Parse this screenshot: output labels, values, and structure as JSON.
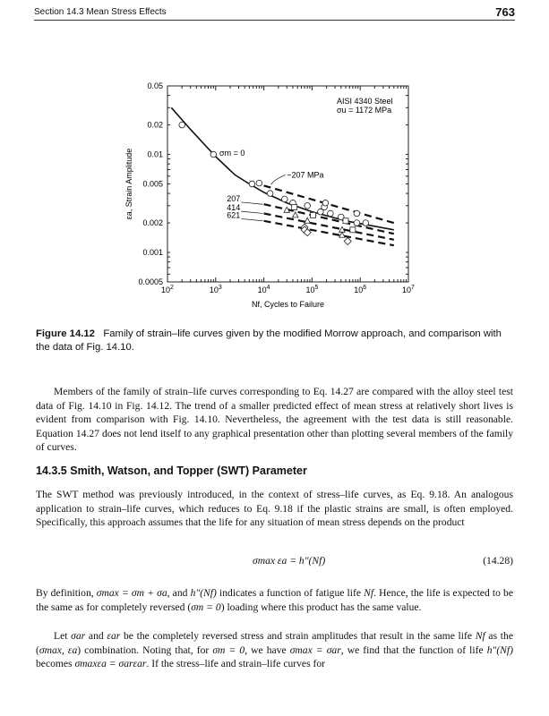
{
  "header": {
    "section": "Section 14.3   Mean Stress Effects",
    "page_number": "763"
  },
  "chart_data": {
    "type": "scatter",
    "xscale": "log",
    "yscale": "log",
    "xlim": [
      100,
      10000000
    ],
    "ylim": [
      0.0005,
      0.05
    ],
    "xlabel": "N_f, Cycles to Failure",
    "ylabel": "ε_a, Strain Amplitude",
    "x_ticks": [
      "10^2",
      "10^3",
      "10^4",
      "10^5",
      "10^6",
      "10^7"
    ],
    "x_tick_values": [
      100,
      1000,
      10000,
      100000,
      1000000,
      10000000
    ],
    "y_ticks": [
      "0.05",
      "0.02",
      "0.01",
      "0.005",
      "0.002",
      "0.001",
      "0.0005"
    ],
    "y_tick_values": [
      0.05,
      0.02,
      0.01,
      0.005,
      0.002,
      0.001,
      0.0005
    ],
    "annotation_material": "AISI 4340 Steel",
    "annotation_strength": "σu = 1172 MPa",
    "curves": [
      {
        "label": "σm = 0",
        "style": "solid",
        "x": [
          120,
          300,
          1000,
          2500,
          5000,
          10000,
          30000,
          100000,
          500000,
          5000000
        ],
        "y": [
          0.03,
          0.018,
          0.0095,
          0.0062,
          0.005,
          0.0041,
          0.0032,
          0.0026,
          0.0021,
          0.0017
        ]
      },
      {
        "label": "−207 MPa",
        "style": "dashed",
        "x": [
          10000,
          5000000
        ],
        "y": [
          0.0048,
          0.002
        ]
      },
      {
        "label": "207",
        "style": "dashed",
        "x": [
          10000,
          5000000
        ],
        "y": [
          0.0031,
          0.00155
        ]
      },
      {
        "label": "414",
        "style": "dashed",
        "x": [
          10000,
          5000000
        ],
        "y": [
          0.0025,
          0.00135
        ]
      },
      {
        "label": "621",
        "style": "dashed",
        "x": [
          10000,
          5000000
        ],
        "y": [
          0.0021,
          0.00118
        ]
      }
    ],
    "points": {
      "circle": {
        "x": [
          200,
          900,
          5700,
          8000,
          13500,
          27000,
          40000,
          80000,
          150000,
          180000,
          190000,
          240000,
          400000,
          850000,
          850000,
          1300000
        ],
        "y": [
          0.02,
          0.01,
          0.005,
          0.0051,
          0.004,
          0.0035,
          0.0032,
          0.003,
          0.0026,
          0.0029,
          0.0032,
          0.0025,
          0.0023,
          0.0025,
          0.002,
          0.002
        ]
      },
      "square": {
        "x": [
          43000,
          105000,
          500000,
          700000
        ],
        "y": [
          0.0029,
          0.0024,
          0.0021,
          0.0017
        ]
      },
      "triangle": {
        "x": [
          30000,
          45000,
          80000,
          420000,
          420000
        ],
        "y": [
          0.0027,
          0.0024,
          0.0021,
          0.0017,
          0.0015
        ]
      },
      "diamond": {
        "x": [
          70000,
          70000,
          80000,
          550000
        ],
        "y": [
          0.0018,
          0.0017,
          0.0016,
          0.0013
        ]
      }
    }
  },
  "caption": {
    "label": "Figure 14.12",
    "text": "Family of strain–life curves given by the modified Morrow approach, and comparison with the data of Fig. 14.10."
  },
  "para1": "Members of the family of strain–life curves corresponding to Eq. 14.27 are compared with the alloy steel test data of Fig. 14.10 in Fig. 14.12. The trend of a smaller predicted effect of mean stress at relatively short lives is evident from comparison with Fig. 14.10. Nevertheless, the agreement with the test data is still reasonable. Equation 14.27 does not lend itself to any graphical presentation other than plotting several members of the family of curves.",
  "section_heading": "14.3.5  Smith, Watson, and Topper (SWT) Parameter",
  "para2": "The SWT method was previously introduced, in the context of stress–life curves, as Eq. 9.18. An analogous application to strain–life curves, which reduces to Eq. 9.18 if the plastic strains are small, is often employed. Specifically, this approach assumes that the life for any situation of mean stress depends on the product",
  "equation": {
    "formula": "σmax εa = h″(Nf)",
    "number": "(14.28)"
  },
  "para3": {
    "s1": "By definition, ",
    "m1": "σmax = σm + σa",
    "s2": ", and ",
    "m2": "h″(Nf)",
    "s3": " indicates a function of fatigue life ",
    "m3": "Nf",
    "s4": ". Hence, the life is expected to be the same as for completely reversed (",
    "m4": "σm = 0",
    "s5": ") loading where this product has the same value."
  },
  "para4": {
    "s1": "Let ",
    "m1": "σar",
    "s2": " and ",
    "m2": "εar",
    "s3": " be the completely reversed stress and strain amplitudes that result in the same life ",
    "m3": "Nf",
    "s4": " as the (",
    "m4": "σmax, εa",
    "s5": ") combination. Noting that, for ",
    "m5": "σm = 0",
    "s6": ", we have ",
    "m6": "σmax = σar",
    "s7": ", we find that the function of life ",
    "m7": "h″(Nf)",
    "s8": " becomes ",
    "m8": "σmaxεa = σarεar",
    "s9": ". If the stress–life and strain–life curves for"
  }
}
